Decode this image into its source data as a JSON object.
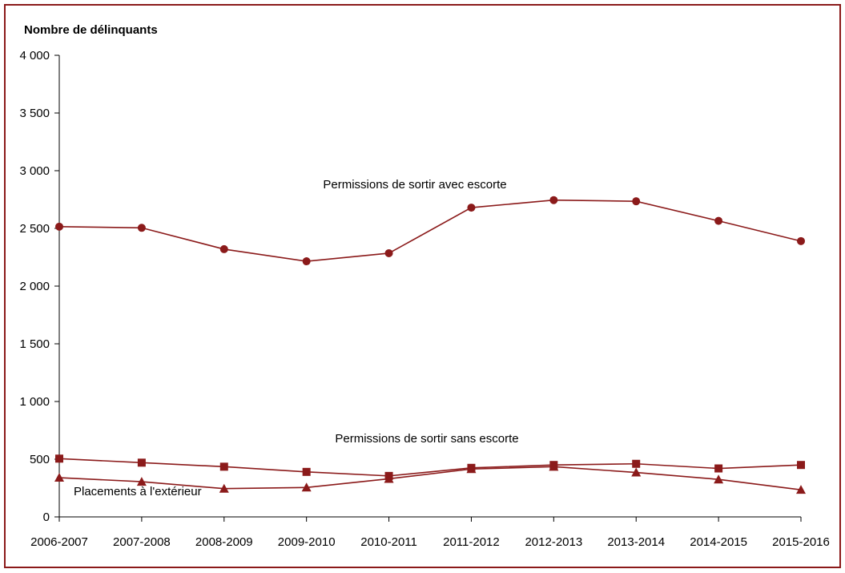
{
  "chart_data": {
    "type": "line",
    "title": "",
    "ylabel": "Nombre de délinquants",
    "xlabel": "",
    "categories": [
      "2006-2007",
      "2007-2008",
      "2008-2009",
      "2009-2010",
      "2010-2011",
      "2011-2012",
      "2012-2013",
      "2013-2014",
      "2014-2015",
      "2015-2016"
    ],
    "ylim": [
      0,
      4000
    ],
    "yticks": [
      0,
      500,
      1000,
      1500,
      2000,
      2500,
      3000,
      3500,
      4000
    ],
    "ytick_labels": [
      "0",
      "500",
      "1 000",
      "1 500",
      "2 000",
      "2 500",
      "3 000",
      "3 500",
      "4 000"
    ],
    "grid": false,
    "legend": "none",
    "series": [
      {
        "name": "Permissions de sortir avec escorte",
        "marker": "circle",
        "color": "#8b1a1a",
        "values": [
          2515,
          2505,
          2320,
          2215,
          2285,
          2680,
          2745,
          2735,
          2565,
          2390
        ]
      },
      {
        "name": "Permissions de sortir sans escorte",
        "marker": "square",
        "color": "#8b1a1a",
        "values": [
          505,
          470,
          435,
          390,
          355,
          425,
          450,
          460,
          420,
          450
        ]
      },
      {
        "name": "Placements à l'extérieur",
        "marker": "triangle",
        "color": "#8b1a1a",
        "values": [
          340,
          305,
          245,
          255,
          330,
          415,
          435,
          385,
          325,
          235
        ]
      }
    ]
  }
}
